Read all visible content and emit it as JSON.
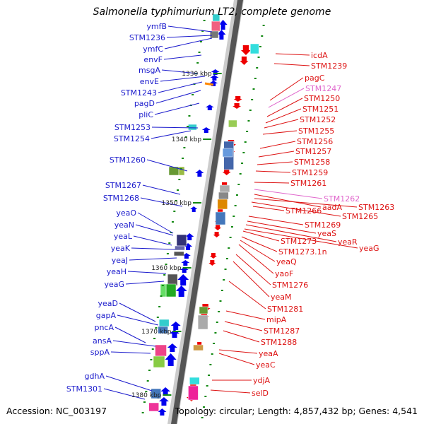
{
  "title": "Salmonella typhimurium LT2, complete genome",
  "accession": "Accession: NC_003197",
  "topology": "Topology: circular; Length: 4,857,432 bp; Genes: 4,541",
  "colors": {
    "forward_label": "#1a1acc",
    "reverse_label": "#dd1111",
    "pseudo_label": "#e066cc",
    "forward_arrow": "#0000ee",
    "reverse_arrow": "#ee0000",
    "tick": "#118811",
    "backbone_dark": "#555555",
    "backbone_light": "#cccccc"
  },
  "scale_marks": [
    "1330 kbp",
    "1340 kbp",
    "1350 kbp",
    "1360 kbp",
    "1370 kbp",
    "1380 kbp"
  ],
  "forward_genes": [
    "ymfB",
    "STM1236",
    "ymfC",
    "envF",
    "msgA",
    "envE",
    "STM1243",
    "pagD",
    "pliC",
    "STM1253",
    "STM1254",
    "STM1260",
    "STM1267",
    "STM1268",
    "yeaO",
    "yeaN",
    "yeaL",
    "yeaK",
    "yeaJ",
    "yeaH",
    "yeaG",
    "yeaD",
    "gapA",
    "pncA",
    "ansA",
    "sppA",
    "gdhA",
    "STM1301"
  ],
  "reverse_genes": [
    "icdA",
    "STM1239",
    "pagC",
    "STM1247",
    "STM1250",
    "STM1251",
    "STM1252",
    "STM1255",
    "STM1256",
    "STM1257",
    "STM1258",
    "STM1259",
    "STM1261",
    "STM1262",
    "aadA",
    "STM1263",
    "STM1266",
    "STM1265",
    "STM1269",
    "yeaS",
    "yeaR",
    "yeaG",
    "STM1273",
    "STM1273.1n",
    "yeaQ",
    "yaoF",
    "STM1276",
    "yeaM",
    "STM1281",
    "mipA",
    "STM1287",
    "STM1288",
    "yeaA",
    "yeaC",
    "ydjA",
    "selD"
  ],
  "pseudo_genes": [
    "STM1247",
    "STM1262"
  ]
}
